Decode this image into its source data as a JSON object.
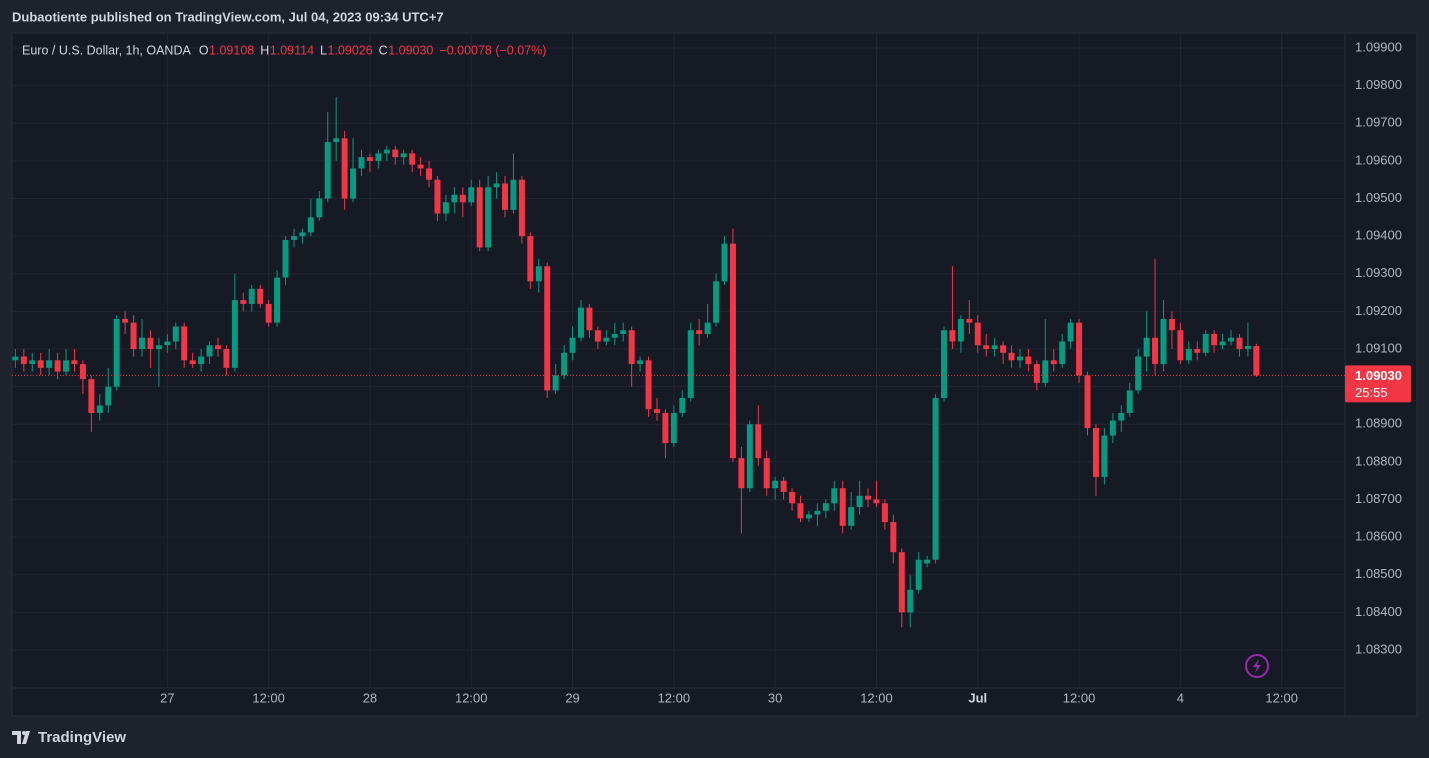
{
  "header": "Dubaotiente published on TradingView.com, Jul 04, 2023 09:34 UTC+7",
  "footer": "TradingView",
  "chart_data": {
    "type": "candlestick",
    "legend": {
      "symbol": "Euro / U.S. Dollar, 1h, OANDA",
      "open_label": "O",
      "open": "1.09108",
      "high_label": "H",
      "high": "1.09114",
      "low_label": "L",
      "low": "1.09026",
      "close_label": "C",
      "close": "1.09030",
      "change": "−0.00078 (−0.07%)"
    },
    "last_price": "1.09030",
    "countdown": "25:55",
    "up_color": "#089981",
    "down_color": "#f23645",
    "grid": true,
    "xlim": [
      -0.4,
      157.5
    ],
    "ylim": [
      1.08199,
      1.0994
    ],
    "xticks": [
      {
        "value": 18,
        "label": "27"
      },
      {
        "value": 30,
        "label": "12:00"
      },
      {
        "value": 42,
        "label": "28"
      },
      {
        "value": 54,
        "label": "12:00"
      },
      {
        "value": 66,
        "label": "29"
      },
      {
        "value": 78,
        "label": "12:00"
      },
      {
        "value": 90,
        "label": "30"
      },
      {
        "value": 102,
        "label": "12:00"
      },
      {
        "value": 114,
        "label": "Jul"
      },
      {
        "value": 126,
        "label": "12:00"
      },
      {
        "value": 138,
        "label": "4"
      },
      {
        "value": 150,
        "label": "12:00"
      }
    ],
    "yticks": [
      {
        "value": 1.099,
        "label": "1.09900"
      },
      {
        "value": 1.098,
        "label": "1.09800"
      },
      {
        "value": 1.097,
        "label": "1.09700"
      },
      {
        "value": 1.096,
        "label": "1.09600"
      },
      {
        "value": 1.095,
        "label": "1.09500"
      },
      {
        "value": 1.094,
        "label": "1.09400"
      },
      {
        "value": 1.093,
        "label": "1.09300"
      },
      {
        "value": 1.092,
        "label": "1.09200"
      },
      {
        "value": 1.091,
        "label": "1.09100"
      },
      {
        "value": 1.09,
        "label": "1.09000"
      },
      {
        "value": 1.089,
        "label": "1.08900"
      },
      {
        "value": 1.088,
        "label": "1.08800"
      },
      {
        "value": 1.087,
        "label": "1.08700"
      },
      {
        "value": 1.086,
        "label": "1.08600"
      },
      {
        "value": 1.085,
        "label": "1.08500"
      },
      {
        "value": 1.084,
        "label": "1.08400"
      },
      {
        "value": 1.083,
        "label": "1.08300"
      }
    ],
    "ohlc": [
      [
        1.0907,
        1.091,
        1.0905,
        1.0908
      ],
      [
        1.0908,
        1.091,
        1.0904,
        1.0906
      ],
      [
        1.0906,
        1.0909,
        1.0904,
        1.0907
      ],
      [
        1.0907,
        1.0909,
        1.0903,
        1.0905
      ],
      [
        1.0905,
        1.091,
        1.0903,
        1.0907
      ],
      [
        1.0907,
        1.0909,
        1.0902,
        1.0904
      ],
      [
        1.0904,
        1.091,
        1.0903,
        1.0907
      ],
      [
        1.0907,
        1.091,
        1.0904,
        1.0906
      ],
      [
        1.0906,
        1.0907,
        1.0898,
        1.0902
      ],
      [
        1.0902,
        1.0903,
        1.0888,
        1.0893
      ],
      [
        1.0893,
        1.0898,
        1.0891,
        1.0895
      ],
      [
        1.0895,
        1.0905,
        1.0893,
        1.09
      ],
      [
        1.09,
        1.0919,
        1.0899,
        1.0918
      ],
      [
        1.0918,
        1.092,
        1.0914,
        1.0917
      ],
      [
        1.0917,
        1.0919,
        1.0908,
        1.091
      ],
      [
        1.091,
        1.0918,
        1.0908,
        1.0913
      ],
      [
        1.0913,
        1.0915,
        1.0905,
        1.091
      ],
      [
        1.091,
        1.0913,
        1.09,
        1.0911
      ],
      [
        1.0911,
        1.0914,
        1.0909,
        1.0912
      ],
      [
        1.0912,
        1.0917,
        1.091,
        1.0916
      ],
      [
        1.0916,
        1.0917,
        1.0905,
        1.0907
      ],
      [
        1.0907,
        1.0909,
        1.0905,
        1.0906
      ],
      [
        1.0906,
        1.091,
        1.0904,
        1.0908
      ],
      [
        1.0908,
        1.0912,
        1.0906,
        1.0911
      ],
      [
        1.0911,
        1.0913,
        1.0908,
        1.091
      ],
      [
        1.091,
        1.0911,
        1.0903,
        1.0905
      ],
      [
        1.0905,
        1.093,
        1.0904,
        1.0923
      ],
      [
        1.0923,
        1.0925,
        1.092,
        1.0922
      ],
      [
        1.0922,
        1.0927,
        1.092,
        1.0926
      ],
      [
        1.0926,
        1.0927,
        1.0921,
        1.0922
      ],
      [
        1.0922,
        1.0923,
        1.0916,
        1.0917
      ],
      [
        1.0917,
        1.0931,
        1.0916,
        1.0929
      ],
      [
        1.0929,
        1.094,
        1.0927,
        1.0939
      ],
      [
        1.0939,
        1.0942,
        1.0937,
        1.094
      ],
      [
        1.094,
        1.0942,
        1.0938,
        1.0941
      ],
      [
        1.0941,
        1.095,
        1.094,
        1.0945
      ],
      [
        1.0945,
        1.0952,
        1.0944,
        1.095
      ],
      [
        1.095,
        1.0973,
        1.0949,
        1.0965
      ],
      [
        1.0965,
        1.0977,
        1.096,
        1.0966
      ],
      [
        1.0966,
        1.0968,
        1.0947,
        1.095
      ],
      [
        1.095,
        1.0966,
        1.0949,
        1.0958
      ],
      [
        1.0958,
        1.0963,
        1.0956,
        1.0961
      ],
      [
        1.0961,
        1.0962,
        1.0957,
        1.096
      ],
      [
        1.096,
        1.0963,
        1.0958,
        1.0962
      ],
      [
        1.0962,
        1.0964,
        1.096,
        1.0963
      ],
      [
        1.0963,
        1.0964,
        1.0959,
        1.0961
      ],
      [
        1.0961,
        1.0963,
        1.0959,
        1.0962
      ],
      [
        1.0962,
        1.0963,
        1.0957,
        1.0959
      ],
      [
        1.0959,
        1.0961,
        1.0956,
        1.0958
      ],
      [
        1.0958,
        1.096,
        1.0953,
        1.0955
      ],
      [
        1.0955,
        1.0956,
        1.0944,
        1.0946
      ],
      [
        1.0946,
        1.0951,
        1.0944,
        1.0949
      ],
      [
        1.0949,
        1.0953,
        1.0946,
        1.0951
      ],
      [
        1.0951,
        1.0953,
        1.0945,
        1.0949
      ],
      [
        1.0949,
        1.0955,
        1.0948,
        1.0953
      ],
      [
        1.0953,
        1.0955,
        1.0936,
        1.0937
      ],
      [
        1.0937,
        1.0956,
        1.0936,
        1.0953
      ],
      [
        1.0953,
        1.0957,
        1.095,
        1.0954
      ],
      [
        1.0954,
        1.0956,
        1.0945,
        1.0947
      ],
      [
        1.0947,
        1.0962,
        1.0946,
        1.0955
      ],
      [
        1.0955,
        1.0956,
        1.0938,
        1.094
      ],
      [
        1.094,
        1.0941,
        1.0926,
        1.0928
      ],
      [
        1.0928,
        1.0934,
        1.0925,
        1.0932
      ],
      [
        1.0932,
        1.0933,
        1.0897,
        1.0899
      ],
      [
        1.0899,
        1.0906,
        1.0898,
        1.0903
      ],
      [
        1.0903,
        1.0911,
        1.0902,
        1.0909
      ],
      [
        1.0909,
        1.0916,
        1.0907,
        1.0913
      ],
      [
        1.0913,
        1.0923,
        1.0912,
        1.0921
      ],
      [
        1.0921,
        1.0922,
        1.0913,
        1.0915
      ],
      [
        1.0915,
        1.0916,
        1.091,
        1.0912
      ],
      [
        1.0912,
        1.0915,
        1.0911,
        1.0913
      ],
      [
        1.0913,
        1.0917,
        1.0911,
        1.0914
      ],
      [
        1.0914,
        1.0917,
        1.0912,
        1.0915
      ],
      [
        1.0915,
        1.0916,
        1.09,
        1.0906
      ],
      [
        1.0906,
        1.0908,
        1.0904,
        1.0907
      ],
      [
        1.0907,
        1.0908,
        1.0892,
        1.0894
      ],
      [
        1.0894,
        1.0897,
        1.0891,
        1.0893
      ],
      [
        1.0893,
        1.0894,
        1.0881,
        1.0885
      ],
      [
        1.0885,
        1.0895,
        1.0884,
        1.0893
      ],
      [
        1.0893,
        1.0899,
        1.0892,
        1.0897
      ],
      [
        1.0897,
        1.0917,
        1.0896,
        1.0915
      ],
      [
        1.0915,
        1.0918,
        1.0911,
        1.0914
      ],
      [
        1.0914,
        1.0922,
        1.0913,
        1.0917
      ],
      [
        1.0917,
        1.093,
        1.0916,
        1.0928
      ],
      [
        1.0928,
        1.094,
        1.0927,
        1.0938
      ],
      [
        1.0938,
        1.0942,
        1.088,
        1.0881
      ],
      [
        1.0881,
        1.0884,
        1.0861,
        1.0873
      ],
      [
        1.0873,
        1.0891,
        1.0872,
        1.089
      ],
      [
        1.089,
        1.0895,
        1.0879,
        1.0881
      ],
      [
        1.0881,
        1.0883,
        1.0871,
        1.0873
      ],
      [
        1.0873,
        1.0876,
        1.087,
        1.0875
      ],
      [
        1.0875,
        1.0876,
        1.087,
        1.0872
      ],
      [
        1.0872,
        1.0873,
        1.0867,
        1.0869
      ],
      [
        1.0869,
        1.0871,
        1.0864,
        1.0865
      ],
      [
        1.0865,
        1.0867,
        1.0864,
        1.0866
      ],
      [
        1.0866,
        1.0869,
        1.0863,
        1.0867
      ],
      [
        1.0867,
        1.087,
        1.0865,
        1.0869
      ],
      [
        1.0869,
        1.0875,
        1.0867,
        1.0873
      ],
      [
        1.0873,
        1.0875,
        1.0861,
        1.0863
      ],
      [
        1.0863,
        1.0872,
        1.0862,
        1.0868
      ],
      [
        1.0868,
        1.0875,
        1.0866,
        1.0871
      ],
      [
        1.0871,
        1.0873,
        1.0868,
        1.087
      ],
      [
        1.087,
        1.0875,
        1.0868,
        1.0869
      ],
      [
        1.0869,
        1.087,
        1.0862,
        1.0864
      ],
      [
        1.0864,
        1.0866,
        1.0853,
        1.0856
      ],
      [
        1.0856,
        1.0857,
        1.0836,
        1.084
      ],
      [
        1.084,
        1.085,
        1.0836,
        1.0846
      ],
      [
        1.0846,
        1.0856,
        1.0845,
        1.0854
      ],
      [
        1.0853,
        1.0855,
        1.0852,
        1.0854
      ],
      [
        1.0854,
        1.0898,
        1.0853,
        1.0897
      ],
      [
        1.0897,
        1.0916,
        1.0896,
        1.0915
      ],
      [
        1.0915,
        1.0932,
        1.091,
        1.0912
      ],
      [
        1.0912,
        1.0919,
        1.0909,
        1.0918
      ],
      [
        1.0918,
        1.0923,
        1.0914,
        1.0917
      ],
      [
        1.0917,
        1.0919,
        1.0909,
        1.0911
      ],
      [
        1.0911,
        1.0914,
        1.0908,
        1.091
      ],
      [
        1.091,
        1.0913,
        1.0908,
        1.0911
      ],
      [
        1.0911,
        1.0912,
        1.0906,
        1.0909
      ],
      [
        1.0909,
        1.0911,
        1.0905,
        1.0907
      ],
      [
        1.0907,
        1.091,
        1.0905,
        1.0908
      ],
      [
        1.0908,
        1.091,
        1.0904,
        1.0906
      ],
      [
        1.0906,
        1.0907,
        1.0899,
        1.0901
      ],
      [
        1.0901,
        1.0918,
        1.09,
        1.0907
      ],
      [
        1.0907,
        1.091,
        1.0904,
        1.0906
      ],
      [
        1.0906,
        1.0914,
        1.0905,
        1.0912
      ],
      [
        1.0912,
        1.0918,
        1.091,
        1.0917
      ],
      [
        1.0917,
        1.0918,
        1.0901,
        1.0903
      ],
      [
        1.0903,
        1.0904,
        1.0887,
        1.0889
      ],
      [
        1.0889,
        1.089,
        1.0871,
        1.0876
      ],
      [
        1.0876,
        1.0889,
        1.0874,
        1.0887
      ],
      [
        1.0887,
        1.0893,
        1.0885,
        1.0891
      ],
      [
        1.0891,
        1.0895,
        1.0888,
        1.0893
      ],
      [
        1.0893,
        1.0901,
        1.0892,
        1.0899
      ],
      [
        1.0899,
        1.091,
        1.0898,
        1.0908
      ],
      [
        1.0908,
        1.092,
        1.0904,
        1.0913
      ],
      [
        1.0913,
        1.0934,
        1.0903,
        1.0906
      ],
      [
        1.0906,
        1.0923,
        1.0904,
        1.0918
      ],
      [
        1.0918,
        1.092,
        1.091,
        1.0915
      ],
      [
        1.0915,
        1.0917,
        1.0906,
        1.0907
      ],
      [
        1.0907,
        1.0912,
        1.0906,
        1.091
      ],
      [
        1.091,
        1.0912,
        1.0907,
        1.0909
      ],
      [
        1.0909,
        1.0915,
        1.0908,
        1.0914
      ],
      [
        1.0914,
        1.0915,
        1.0909,
        1.0911
      ],
      [
        1.0911,
        1.0914,
        1.091,
        1.0912
      ],
      [
        1.0912,
        1.0915,
        1.0911,
        1.0913
      ],
      [
        1.0913,
        1.0914,
        1.0908,
        1.091
      ],
      [
        1.091,
        1.0917,
        1.0908,
        1.09108
      ],
      [
        1.09108,
        1.09114,
        1.09026,
        1.0903
      ]
    ]
  }
}
